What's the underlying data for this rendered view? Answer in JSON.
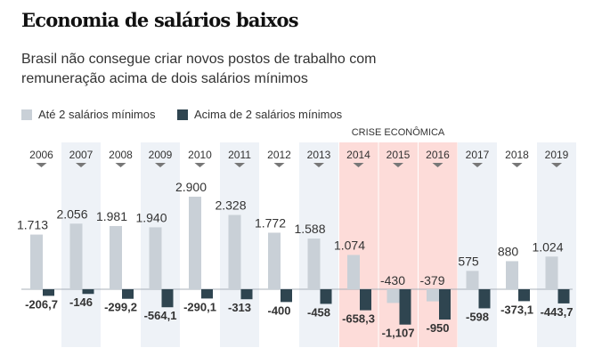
{
  "title": "Economia de salários baixos",
  "subtitle": "Brasil não consegue criar novos postos de trabalho com remuneração acima de dois salários mínimos",
  "colors": {
    "low": "#c9d0d7",
    "high": "#2f4550",
    "band": "#eef2f7",
    "crisis": "#fddcd9"
  },
  "chart_data": {
    "type": "bar",
    "categories": [
      "2006",
      "2007",
      "2008",
      "2009",
      "2010",
      "2011",
      "2012",
      "2013",
      "2014",
      "2015",
      "2016",
      "2017",
      "2018",
      "2019"
    ],
    "series": [
      {
        "name": "Até 2 salários mínimos",
        "values": [
          1713,
          2056,
          1981,
          1940,
          2900,
          2328,
          1772,
          1588,
          1074,
          -430,
          -379,
          575,
          880,
          1024
        ],
        "labels": [
          "1.713",
          "2.056",
          "1.981",
          "1.940",
          "2.900",
          "2.328",
          "1.772",
          "1.588",
          "1.074",
          "-430",
          "-379",
          "575",
          "880",
          "1.024"
        ]
      },
      {
        "name": "Acima de 2 salários mínimos",
        "values": [
          -206.7,
          -146,
          -299.2,
          -564.1,
          -290.1,
          -313,
          -400,
          -458,
          -658.3,
          -1107,
          -950,
          -598,
          -373.1,
          -443.7
        ],
        "labels": [
          "-206,7",
          "-146",
          "-299,2",
          "-564,1",
          "-290,1",
          "-313",
          "-400",
          "-458",
          "-658,3",
          "-1,107",
          "-950",
          "-598",
          "-373,1",
          "-443,7"
        ]
      }
    ],
    "annotation": {
      "text": "CRISE ECONÔMICA",
      "categories": [
        "2014",
        "2015",
        "2016"
      ]
    },
    "shaded_categories": [
      "2007",
      "2009",
      "2011",
      "2013",
      "2017",
      "2019"
    ],
    "legend": "top-left",
    "grid": false
  }
}
